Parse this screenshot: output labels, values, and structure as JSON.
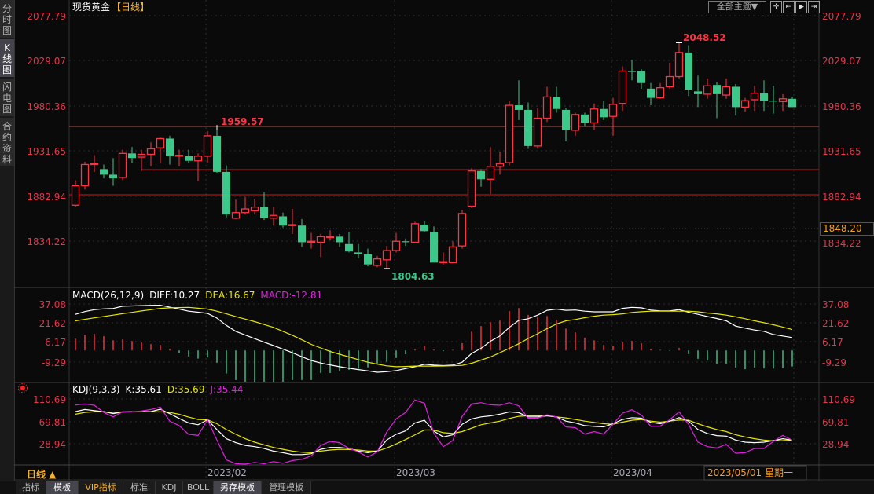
{
  "sidebar": {
    "tabs": [
      {
        "label": "分时图",
        "active": false
      },
      {
        "label": "K线图",
        "active": true
      },
      {
        "label": "闪电图",
        "active": false
      },
      {
        "label": "合约资料",
        "active": false
      }
    ]
  },
  "header": {
    "instrument": "现货黄金",
    "period": "【日线】",
    "theme_button": "全部主题▼",
    "icons": [
      "crosshair-icon",
      "zoom-in-icon",
      "play-forward-icon",
      "move-right-icon"
    ]
  },
  "colors": {
    "up": "#ff3344",
    "down": "#3cc88a",
    "axis_label": "#e8334a",
    "diff": "#ffffff",
    "dea": "#e6e600",
    "macd": "#e020e0",
    "k": "#ffffff",
    "d": "#e6e600",
    "j": "#e020e0",
    "background": "#0a0a0a"
  },
  "price_axis": {
    "ticks": [
      "2077.79",
      "2029.07",
      "1980.36",
      "1931.65",
      "1882.94",
      "1834.22"
    ],
    "current_price": "1848.20"
  },
  "annotations": {
    "high_label": "2048.52",
    "low_label": "1804.63",
    "marked_label": "1959.57"
  },
  "horizontal_lines": [
    1959.57,
    1911.4,
    1884.3
  ],
  "macd": {
    "title": "MACD(26,12,9)",
    "diff_label": "DIFF:10.27",
    "dea_label": "DEA:16.67",
    "macd_label": "MACD:-12.81",
    "ticks": [
      "37.08",
      "21.62",
      "6.17",
      "-9.29"
    ]
  },
  "kdj": {
    "title": "KDJ(9,3,3)",
    "k_label": "K:35.61",
    "d_label": "D:35.69",
    "j_label": "J:35.44",
    "ticks": [
      "110.69",
      "69.81",
      "28.94"
    ]
  },
  "xaxis": {
    "period_label": "日线 ▲",
    "months": [
      {
        "label": "2023/02",
        "index": 14
      },
      {
        "label": "2023/03",
        "index": 34
      },
      {
        "label": "2023/04",
        "index": 57
      }
    ],
    "cursor_date": "2023/05/01 星期一"
  },
  "bottom_tabs": [
    "指标",
    "模板",
    "VIP指标",
    "标准",
    "KDJ",
    "BOLL",
    "另存模板",
    "管理模板"
  ],
  "chart_data": {
    "type": "candlestick",
    "ylim": [
      1804.63,
      2077.79
    ],
    "ohlc": [
      [
        1873,
        1900,
        1871,
        1894
      ],
      [
        1894,
        1920,
        1890,
        1917
      ],
      [
        1917,
        1927,
        1909,
        1918
      ],
      [
        1912,
        1917,
        1902,
        1906
      ],
      [
        1906,
        1924,
        1894,
        1902
      ],
      [
        1903,
        1933,
        1900,
        1929
      ],
      [
        1929,
        1936,
        1919,
        1924
      ],
      [
        1925,
        1933,
        1910,
        1928
      ],
      [
        1928,
        1941,
        1915,
        1934
      ],
      [
        1935,
        1946,
        1918,
        1945
      ],
      [
        1945,
        1948,
        1917,
        1926
      ],
      [
        1926,
        1933,
        1915,
        1927
      ],
      [
        1926,
        1933,
        1919,
        1921
      ],
      [
        1921,
        1929,
        1899,
        1926
      ],
      [
        1926,
        1953,
        1919,
        1948
      ],
      [
        1948,
        1959.57,
        1908,
        1909
      ],
      [
        1909,
        1916,
        1860,
        1863
      ],
      [
        1859,
        1879,
        1858,
        1865
      ],
      [
        1865,
        1882,
        1863,
        1869
      ],
      [
        1867,
        1880,
        1863,
        1871
      ],
      [
        1871,
        1887,
        1857,
        1859
      ],
      [
        1859,
        1871,
        1851,
        1862
      ],
      [
        1861,
        1865,
        1849,
        1851
      ],
      [
        1851,
        1869,
        1842,
        1852
      ],
      [
        1851,
        1858,
        1828,
        1833
      ],
      [
        1833,
        1843,
        1826,
        1834
      ],
      [
        1833,
        1842,
        1817,
        1839
      ],
      [
        1838,
        1846,
        1835,
        1839
      ],
      [
        1839,
        1842,
        1828,
        1833
      ],
      [
        1831,
        1844,
        1822,
        1823
      ],
      [
        1822,
        1831,
        1816,
        1820
      ],
      [
        1820,
        1826,
        1807,
        1809
      ],
      [
        1808,
        1818,
        1806,
        1815
      ],
      [
        1814,
        1829,
        1804.63,
        1824
      ],
      [
        1824,
        1843,
        1822,
        1834
      ],
      [
        1834,
        1837,
        1829,
        1833
      ],
      [
        1833,
        1855,
        1832,
        1853
      ],
      [
        1852,
        1856,
        1844,
        1845
      ],
      [
        1844,
        1850,
        1811,
        1811
      ],
      [
        1811,
        1822,
        1809,
        1812
      ],
      [
        1811,
        1834,
        1811,
        1828
      ],
      [
        1829,
        1868,
        1826,
        1864
      ],
      [
        1872,
        1913,
        1870,
        1910
      ],
      [
        1910,
        1912,
        1893,
        1901
      ],
      [
        1901,
        1936,
        1885,
        1915
      ],
      [
        1915,
        1931,
        1906,
        1918
      ],
      [
        1919,
        1986,
        1916,
        1981
      ],
      [
        1981,
        2008,
        1965,
        1976
      ],
      [
        1976,
        1984,
        1934,
        1937
      ],
      [
        1937,
        1978,
        1934,
        1967
      ],
      [
        1967,
        2001,
        1963,
        1990
      ],
      [
        1990,
        2001,
        1973,
        1977
      ],
      [
        1976,
        1978,
        1942,
        1954
      ],
      [
        1954,
        1973,
        1948,
        1971
      ],
      [
        1971,
        1973,
        1958,
        1962
      ],
      [
        1962,
        1983,
        1954,
        1977
      ],
      [
        1977,
        1986,
        1965,
        1968
      ],
      [
        1969,
        1989,
        1948,
        1982
      ],
      [
        1983,
        2023,
        1975,
        2018
      ],
      [
        2018,
        2030,
        2008,
        2017
      ],
      [
        2018,
        2020,
        1999,
        2005
      ],
      [
        1999,
        2005,
        1981,
        1989
      ],
      [
        1989,
        2005,
        1988,
        2000
      ],
      [
        2001,
        2027,
        1999,
        2012
      ],
      [
        2012,
        2048.52,
        2010,
        2038
      ],
      [
        2038,
        2046,
        1991,
        1998
      ],
      [
        1996,
        2013,
        1979,
        1993
      ],
      [
        1993,
        2010,
        1988,
        2002
      ],
      [
        2003,
        2006,
        1967,
        1993
      ],
      [
        1992,
        2010,
        1988,
        2001
      ],
      [
        2001,
        2004,
        1970,
        1979
      ],
      [
        1979,
        1989,
        1974,
        1986
      ],
      [
        1987,
        2002,
        1975,
        1994
      ],
      [
        1994,
        2008,
        1975,
        1986
      ],
      [
        1986,
        2002,
        1972,
        1985
      ],
      [
        1985,
        1993,
        1975,
        1988
      ],
      [
        1988,
        1990,
        1979,
        1979
      ]
    ],
    "macd_hist": [
      9.4,
      12.5,
      13.2,
      11.3,
      8.1,
      8.8,
      7.5,
      6.3,
      5.0,
      4.4,
      1.3,
      -2.3,
      -4.8,
      -6.5,
      -5.6,
      -9.8,
      -18.4,
      -23.6,
      -25,
      -25,
      -25,
      -25,
      -25,
      -23.6,
      -23.6,
      -23.6,
      -18,
      -18,
      -16.5,
      -15.5,
      -14.5,
      -13.5,
      -11,
      -9,
      -6,
      -3,
      1.1,
      3.8,
      0.8,
      -0.6,
      0.6,
      5.8,
      15,
      19.5,
      22.6,
      23.8,
      31.4,
      33.8,
      28.4,
      27.1,
      27.5,
      24.6,
      17.5,
      14.4,
      10,
      8.1,
      4.4,
      3.8,
      6.9,
      7.6,
      5.8,
      1.3,
      0.6,
      -0.3,
      2,
      -2.9,
      -6.7,
      -8.1,
      -10.6,
      -10.6,
      -13.7,
      -15,
      -13.7,
      -14.4,
      -14.4,
      -13.7,
      -12.81
    ],
    "diff": [
      28.8,
      31,
      32.5,
      33.2,
      33.5,
      35.3,
      35.5,
      35.8,
      36,
      36.1,
      34.5,
      33,
      31.3,
      30.5,
      29.6,
      25.8,
      20,
      15.2,
      12.3,
      9.4,
      6.6,
      3.9,
      1,
      -1.8,
      -5,
      -8,
      -10,
      -11.5,
      -13,
      -14.2,
      -15.3,
      -16.3,
      -17.4,
      -17,
      -16.1,
      -14.5,
      -13,
      -11,
      -11.7,
      -12.1,
      -11.7,
      -9.4,
      -2.4,
      1.7,
      7.3,
      11.5,
      18.4,
      24,
      25.3,
      28.2,
      32,
      33,
      32,
      32.3,
      31.3,
      30.8,
      30.8,
      30.8,
      33.6,
      34.4,
      34,
      32.2,
      31.5,
      31.5,
      32.6,
      30.5,
      28.8,
      27.1,
      25.5,
      23.6,
      19.4,
      17.8,
      16.3,
      15.2,
      12.7,
      11.5,
      10.27
    ],
    "dea": [
      23.6,
      24.8,
      26,
      27.1,
      28.2,
      29.3,
      30.4,
      31.5,
      32.5,
      33.6,
      34,
      34.2,
      34.4,
      33.7,
      33,
      31.3,
      29.2,
      27,
      25,
      23,
      20.7,
      18.4,
      15.2,
      12.1,
      8.5,
      4.8,
      2,
      -0.8,
      -3,
      -5.2,
      -7.3,
      -9.4,
      -10.9,
      -12.3,
      -13,
      -12.8,
      -12.5,
      -12.5,
      -12.5,
      -12.4,
      -12.2,
      -11.9,
      -10.2,
      -7.7,
      -5.2,
      -1.8,
      1.7,
      5.3,
      9.5,
      13.3,
      17.4,
      21.1,
      23.6,
      24.7,
      26.1,
      27.3,
      28.2,
      28.6,
      29.2,
      30.3,
      30.9,
      31.3,
      31.3,
      31.3,
      31.3,
      31.3,
      30.8,
      29.9,
      29.2,
      28.2,
      26.8,
      25.3,
      23.6,
      22.1,
      20.5,
      18.7,
      16.67
    ],
    "k": [
      87.6,
      91.5,
      89.5,
      87.6,
      83.8,
      86.7,
      87.6,
      87.6,
      87.6,
      92,
      83.8,
      75.1,
      67,
      63.6,
      72.7,
      54.9,
      38.1,
      30.9,
      26,
      23.6,
      20.3,
      15.5,
      12.6,
      9.2,
      9.2,
      10.7,
      18.8,
      22.2,
      22.2,
      20.3,
      15.5,
      12.6,
      15.5,
      35.7,
      46.3,
      52.5,
      67,
      71.8,
      52,
      41.4,
      45.3,
      64.5,
      74.2,
      78,
      79.9,
      82.8,
      87.1,
      85.7,
      78,
      78,
      79.9,
      78,
      70.3,
      67,
      62.1,
      60.7,
      59.7,
      65.5,
      73.2,
      76.6,
      75.6,
      67.9,
      65.5,
      70.3,
      76.6,
      70.3,
      54.9,
      47.7,
      43.8,
      42.9,
      35.7,
      31.8,
      30.9,
      31.8,
      34.7,
      38.1,
      35.61
    ],
    "d": [
      82.8,
      86.2,
      87.6,
      87.6,
      84.8,
      87.3,
      87.3,
      87.3,
      87.3,
      87.3,
      86.2,
      82.8,
      77.5,
      73.2,
      72.7,
      65.5,
      54.9,
      46.3,
      38.1,
      31.8,
      27,
      22.2,
      18.8,
      15.5,
      13.5,
      12.6,
      15.5,
      17.4,
      18.8,
      18.4,
      17.4,
      15.5,
      15.5,
      21.2,
      28.5,
      36.6,
      45.3,
      54,
      54,
      49.1,
      47.7,
      51.1,
      57.3,
      63.6,
      67,
      70.3,
      75.1,
      79,
      80,
      80,
      80,
      78,
      76.1,
      73.2,
      70.3,
      67.9,
      65.5,
      64.5,
      68.4,
      71.8,
      73.2,
      70.3,
      68.4,
      70.3,
      72.2,
      71.8,
      65.5,
      59.7,
      54.9,
      51.1,
      45.3,
      41.4,
      38.1,
      35.7,
      34.2,
      34.7,
      35.69
    ],
    "j": [
      99.6,
      101.6,
      99.2,
      86.2,
      78,
      87.1,
      87.5,
      88.6,
      91.5,
      95.8,
      70.3,
      62.1,
      46.3,
      44.3,
      72.7,
      35.7,
      -0.4,
      -7.6,
      -8.5,
      -5.2,
      -7.6,
      -3.8,
      -6.7,
      -1.8,
      0.6,
      6.8,
      26,
      33.3,
      30.9,
      20.3,
      14.1,
      4.5,
      14.1,
      50.1,
      74.2,
      86.2,
      108.8,
      103,
      48,
      23.6,
      34.7,
      79,
      101.6,
      104,
      100.1,
      99.2,
      104,
      98.2,
      75.6,
      75.6,
      81.8,
      78,
      59.7,
      58.3,
      46.7,
      51.1,
      46.7,
      64.5,
      84.7,
      91,
      81.4,
      60.7,
      61.2,
      72.7,
      87.1,
      64.5,
      31.8,
      23.6,
      21.2,
      28,
      11.6,
      12.6,
      20.3,
      20.3,
      33.3,
      44.3,
      35.44
    ]
  }
}
